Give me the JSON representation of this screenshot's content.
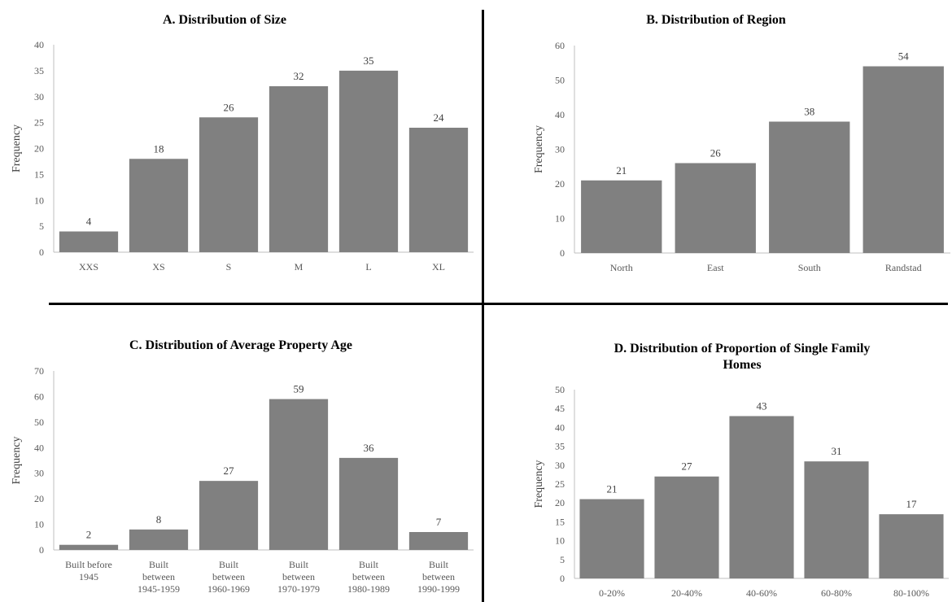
{
  "chart_data": [
    {
      "id": "a",
      "type": "bar",
      "title": [
        "A. Distribution of Size"
      ],
      "ylabel": "Frequency",
      "xlabel": "",
      "ylim": [
        0,
        40
      ],
      "ystep": 5,
      "categories": [
        [
          "XXS"
        ],
        [
          "XS"
        ],
        [
          "S"
        ],
        [
          "M"
        ],
        [
          "L"
        ],
        [
          "XL"
        ]
      ],
      "values": [
        4,
        18,
        26,
        32,
        35,
        24
      ],
      "color": "#808080",
      "grid": false
    },
    {
      "id": "b",
      "type": "bar",
      "title": [
        "B. Distribution of Region"
      ],
      "ylabel": "Frequency",
      "xlabel": "",
      "ylim": [
        0,
        60
      ],
      "ystep": 10,
      "categories": [
        [
          "North"
        ],
        [
          "East"
        ],
        [
          "South"
        ],
        [
          "Randstad"
        ]
      ],
      "values": [
        21,
        26,
        38,
        54
      ],
      "color": "#808080",
      "grid": false
    },
    {
      "id": "c",
      "type": "bar",
      "title": [
        "C. Distribution of Average Property Age"
      ],
      "ylabel": "Frequency",
      "xlabel": "",
      "ylim": [
        0,
        70
      ],
      "ystep": 10,
      "categories": [
        [
          "Built before",
          "1945"
        ],
        [
          "Built",
          "between",
          "1945-1959"
        ],
        [
          "Built",
          "between",
          "1960-1969"
        ],
        [
          "Built",
          "between",
          "1970-1979"
        ],
        [
          "Built",
          "between",
          "1980-1989"
        ],
        [
          "Built",
          "between",
          "1990-1999"
        ]
      ],
      "values": [
        2,
        8,
        27,
        59,
        36,
        7
      ],
      "color": "#808080",
      "grid": false
    },
    {
      "id": "d",
      "type": "bar",
      "title": [
        "D. Distribution of Proportion of Single Family",
        "Homes"
      ],
      "ylabel": "Frequency",
      "xlabel": "",
      "ylim": [
        0,
        50
      ],
      "ystep": 5,
      "categories": [
        [
          "0-20%"
        ],
        [
          "20-40%"
        ],
        [
          "40-60%"
        ],
        [
          "60-80%"
        ],
        [
          "80-100%"
        ]
      ],
      "values": [
        21,
        27,
        43,
        31,
        17
      ],
      "color": "#808080",
      "grid": false
    }
  ]
}
